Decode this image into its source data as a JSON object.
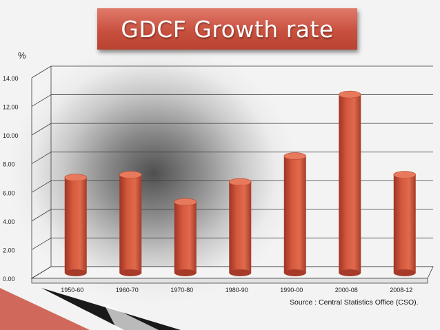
{
  "slide": {
    "title": "GDCF Growth rate",
    "source": "Source : Central Statistics Office (CSO)."
  },
  "colors": {
    "banner": "#c9503f",
    "bar": "#d4583d",
    "bar_top": "#e77a5c",
    "grid": "#3a3a3a"
  },
  "chart_data": {
    "type": "bar",
    "title": "GDCF Growth rate",
    "ylabel": "%",
    "xlabel": "",
    "categories": [
      "1950-60",
      "1960-70",
      "1970-80",
      "1980-90",
      "1990-00",
      "2000-08",
      "2008-12"
    ],
    "values": [
      6.7,
      6.9,
      5.0,
      6.4,
      8.2,
      12.5,
      6.9
    ],
    "ylim": [
      0,
      14
    ],
    "ytick_values": [
      0,
      2,
      4,
      6,
      8,
      10,
      12,
      14
    ],
    "ytick_labels": [
      "0.00",
      "2.00",
      "4.00",
      "6.00",
      "8.00",
      "10.00",
      "12.00",
      "14.00"
    ],
    "grid": true,
    "legend": "none"
  }
}
